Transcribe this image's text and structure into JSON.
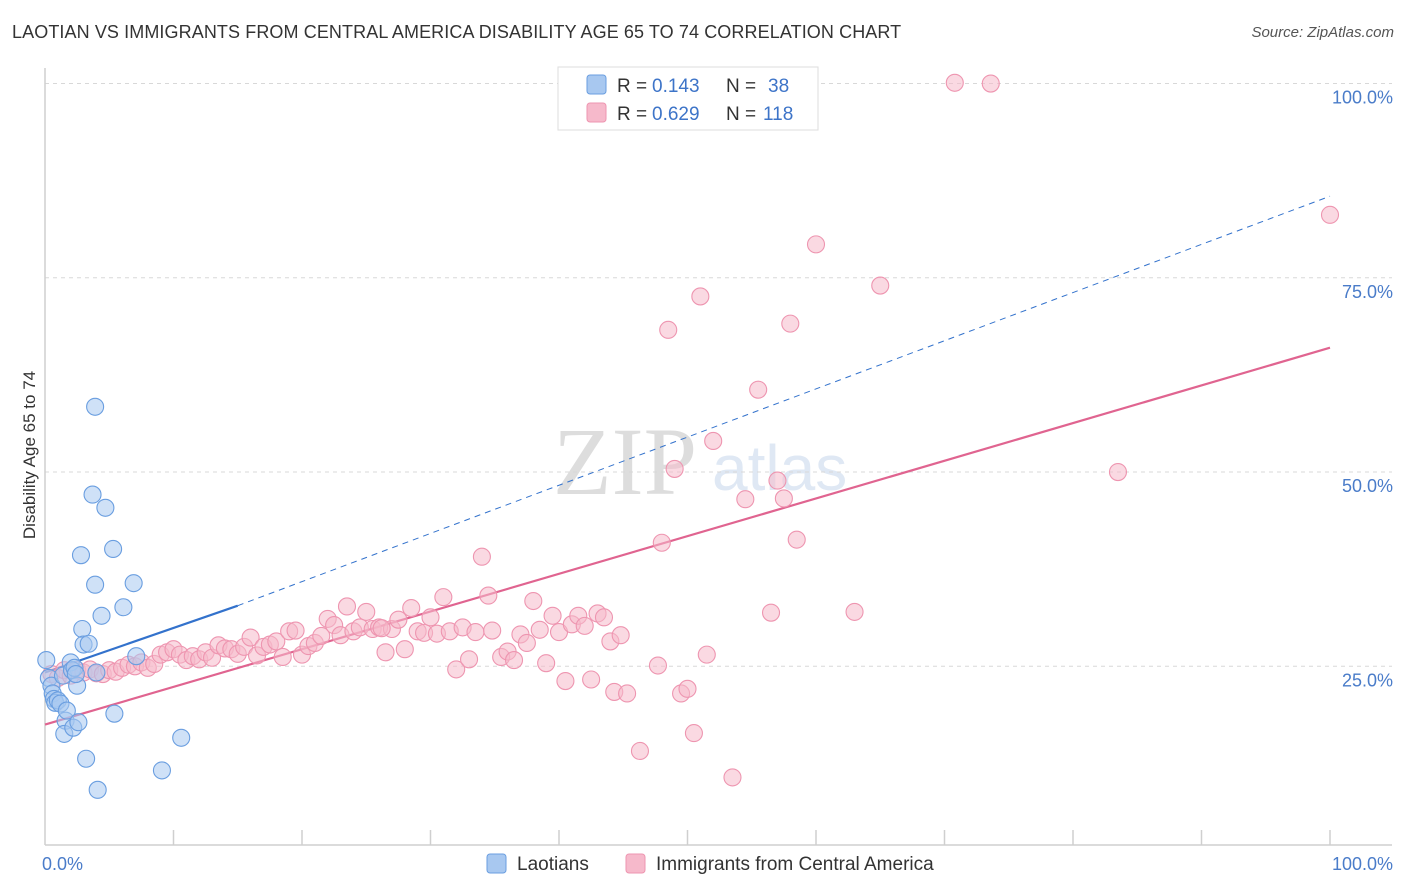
{
  "title": "LAOTIAN VS IMMIGRANTS FROM CENTRAL AMERICA DISABILITY AGE 65 TO 74 CORRELATION CHART",
  "source": "Source: ZipAtlas.com",
  "watermark": {
    "zip": "ZIP",
    "atlas": "atlas"
  },
  "colors": {
    "blue_fill": "#a8c8f0",
    "blue_stroke": "#6a9ee0",
    "blue_line": "#3372cc",
    "pink_fill": "#f6b9cb",
    "pink_stroke": "#ee95b0",
    "pink_line": "#e06490",
    "tick_text": "#4a7cc9",
    "grid": "#d8d8d8"
  },
  "legend_box": [
    {
      "r_label": "R =",
      "r_value": "0.143",
      "n_label": "N =",
      "n_value": "38",
      "series": "laotians"
    },
    {
      "r_label": "R =",
      "r_value": "0.629",
      "n_label": "N =",
      "n_value": "118",
      "series": "immigrants"
    }
  ],
  "chart_data": {
    "type": "scatter",
    "title": "LAOTIAN VS IMMIGRANTS FROM CENTRAL AMERICA DISABILITY AGE 65 TO 74 CORRELATION CHART",
    "xlabel": "",
    "ylabel": "Disability Age 65 to 74",
    "xlim": [
      0,
      100
    ],
    "ylim": [
      2,
      102
    ],
    "x_tick_labels": [
      {
        "value": 0,
        "label": "0.0%"
      },
      {
        "value": 100,
        "label": "100.0%"
      }
    ],
    "y_tick_labels": [
      {
        "value": 25,
        "label": "25.0%"
      },
      {
        "value": 50,
        "label": "50.0%"
      },
      {
        "value": 75,
        "label": "75.0%"
      },
      {
        "value": 100,
        "label": "100.0%"
      }
    ],
    "legend": [
      "Laotians",
      "Immigrants from Central America"
    ],
    "series": [
      {
        "name": "Laotians",
        "color": "#a8c8f0",
        "points": [
          [
            0.1,
            25.8
          ],
          [
            0.3,
            23.5
          ],
          [
            0.5,
            22.5
          ],
          [
            0.6,
            21.5
          ],
          [
            0.7,
            20.8
          ],
          [
            0.8,
            20.3
          ],
          [
            1.0,
            20.6
          ],
          [
            1.2,
            20.2
          ],
          [
            1.4,
            23.8
          ],
          [
            1.6,
            18.0
          ],
          [
            1.5,
            16.3
          ],
          [
            1.7,
            19.3
          ],
          [
            2.0,
            25.5
          ],
          [
            2.1,
            24.5
          ],
          [
            2.2,
            17.1
          ],
          [
            2.3,
            24.8
          ],
          [
            2.5,
            22.5
          ],
          [
            2.6,
            17.8
          ],
          [
            2.8,
            39.3
          ],
          [
            2.9,
            29.8
          ],
          [
            3.0,
            27.8
          ],
          [
            3.2,
            13.1
          ],
          [
            3.4,
            27.9
          ],
          [
            3.7,
            47.1
          ],
          [
            3.9,
            58.4
          ],
          [
            3.9,
            35.5
          ],
          [
            4.1,
            9.1
          ],
          [
            4.4,
            31.5
          ],
          [
            4.7,
            45.4
          ],
          [
            5.3,
            40.1
          ],
          [
            5.4,
            18.9
          ],
          [
            6.1,
            32.6
          ],
          [
            6.9,
            35.7
          ],
          [
            7.1,
            26.3
          ],
          [
            9.1,
            11.6
          ],
          [
            10.6,
            15.8
          ],
          [
            4.0,
            24.2
          ],
          [
            2.4,
            24.0
          ]
        ]
      },
      {
        "name": "Immigrants from Central America",
        "color": "#f6b9cb",
        "points": [
          [
            0.5,
            24.0
          ],
          [
            1.0,
            23.5
          ],
          [
            1.5,
            24.5
          ],
          [
            2.0,
            23.8
          ],
          [
            2.5,
            24.5
          ],
          [
            3.0,
            24.2
          ],
          [
            3.5,
            24.6
          ],
          [
            4.0,
            24.1
          ],
          [
            4.5,
            24.0
          ],
          [
            5.0,
            24.5
          ],
          [
            5.5,
            24.3
          ],
          [
            6.0,
            24.8
          ],
          [
            6.5,
            25.2
          ],
          [
            7.0,
            25.0
          ],
          [
            7.5,
            25.5
          ],
          [
            8.0,
            24.8
          ],
          [
            8.5,
            25.3
          ],
          [
            9.0,
            26.5
          ],
          [
            9.5,
            26.8
          ],
          [
            10.0,
            27.2
          ],
          [
            10.5,
            26.5
          ],
          [
            11.0,
            25.8
          ],
          [
            11.5,
            26.3
          ],
          [
            12.0,
            25.9
          ],
          [
            12.5,
            26.8
          ],
          [
            13.0,
            26.1
          ],
          [
            13.5,
            27.7
          ],
          [
            14.0,
            27.3
          ],
          [
            14.5,
            27.2
          ],
          [
            15.0,
            26.6
          ],
          [
            15.5,
            27.5
          ],
          [
            16.0,
            28.7
          ],
          [
            16.5,
            26.4
          ],
          [
            17.0,
            27.5
          ],
          [
            17.5,
            27.8
          ],
          [
            18.0,
            28.2
          ],
          [
            18.5,
            26.2
          ],
          [
            19.0,
            29.5
          ],
          [
            19.5,
            29.6
          ],
          [
            20.0,
            26.5
          ],
          [
            20.5,
            27.6
          ],
          [
            21.0,
            28.0
          ],
          [
            21.5,
            28.9
          ],
          [
            22.0,
            31.1
          ],
          [
            22.5,
            30.3
          ],
          [
            23.0,
            29.0
          ],
          [
            23.5,
            32.7
          ],
          [
            24.0,
            29.5
          ],
          [
            24.5,
            30.0
          ],
          [
            25.0,
            32.0
          ],
          [
            25.5,
            29.8
          ],
          [
            26.0,
            30.0
          ],
          [
            26.5,
            26.8
          ],
          [
            27.0,
            29.8
          ],
          [
            27.5,
            31.0
          ],
          [
            28.0,
            27.2
          ],
          [
            28.5,
            32.5
          ],
          [
            29.0,
            29.5
          ],
          [
            29.5,
            29.3
          ],
          [
            30.0,
            31.3
          ],
          [
            30.5,
            29.2
          ],
          [
            31.0,
            33.9
          ],
          [
            31.5,
            29.5
          ],
          [
            32.0,
            24.6
          ],
          [
            32.5,
            30.0
          ],
          [
            33.0,
            25.9
          ],
          [
            33.5,
            29.4
          ],
          [
            34.0,
            39.1
          ],
          [
            34.5,
            34.1
          ],
          [
            34.8,
            29.6
          ],
          [
            35.5,
            26.2
          ],
          [
            36.0,
            26.9
          ],
          [
            36.5,
            25.8
          ],
          [
            37.0,
            29.1
          ],
          [
            37.5,
            28.0
          ],
          [
            38.0,
            33.4
          ],
          [
            38.5,
            29.7
          ],
          [
            39.0,
            25.4
          ],
          [
            39.5,
            31.5
          ],
          [
            40.0,
            29.4
          ],
          [
            40.5,
            23.1
          ],
          [
            41.0,
            30.4
          ],
          [
            41.5,
            31.5
          ],
          [
            42.0,
            30.2
          ],
          [
            42.5,
            23.3
          ],
          [
            43.0,
            31.8
          ],
          [
            43.5,
            31.3
          ],
          [
            44.0,
            28.2
          ],
          [
            44.3,
            21.7
          ],
          [
            44.8,
            29.0
          ],
          [
            45.3,
            21.5
          ],
          [
            46.3,
            14.1
          ],
          [
            47.7,
            25.1
          ],
          [
            48.0,
            40.9
          ],
          [
            48.5,
            68.3
          ],
          [
            49.0,
            50.4
          ],
          [
            49.5,
            21.5
          ],
          [
            50.0,
            22.1
          ],
          [
            50.5,
            16.4
          ],
          [
            51.0,
            72.6
          ],
          [
            51.5,
            26.5
          ],
          [
            52.0,
            54.0
          ],
          [
            53.5,
            10.7
          ],
          [
            54.5,
            46.5
          ],
          [
            55.5,
            60.6
          ],
          [
            56.5,
            31.9
          ],
          [
            57.0,
            48.9
          ],
          [
            57.5,
            46.6
          ],
          [
            58.0,
            69.1
          ],
          [
            58.5,
            41.3
          ],
          [
            60.0,
            79.3
          ],
          [
            63.0,
            32.0
          ],
          [
            65.0,
            74.0
          ],
          [
            70.8,
            100.1
          ],
          [
            73.6,
            100.0
          ],
          [
            83.5,
            50.0
          ],
          [
            100.0,
            83.1
          ],
          [
            26.2,
            29.9
          ]
        ]
      }
    ],
    "trend_lines": [
      {
        "series": "Laotians",
        "style": "solid",
        "x": [
          0,
          15
        ],
        "y": [
          24.2,
          32.8
        ]
      },
      {
        "series": "Laotians",
        "style": "dashed",
        "x": [
          15,
          100
        ],
        "y": [
          32.8,
          85.5
        ]
      },
      {
        "series": "Immigrants from Central America",
        "style": "solid",
        "x": [
          0,
          100
        ],
        "y": [
          17.5,
          66.0
        ]
      }
    ]
  }
}
